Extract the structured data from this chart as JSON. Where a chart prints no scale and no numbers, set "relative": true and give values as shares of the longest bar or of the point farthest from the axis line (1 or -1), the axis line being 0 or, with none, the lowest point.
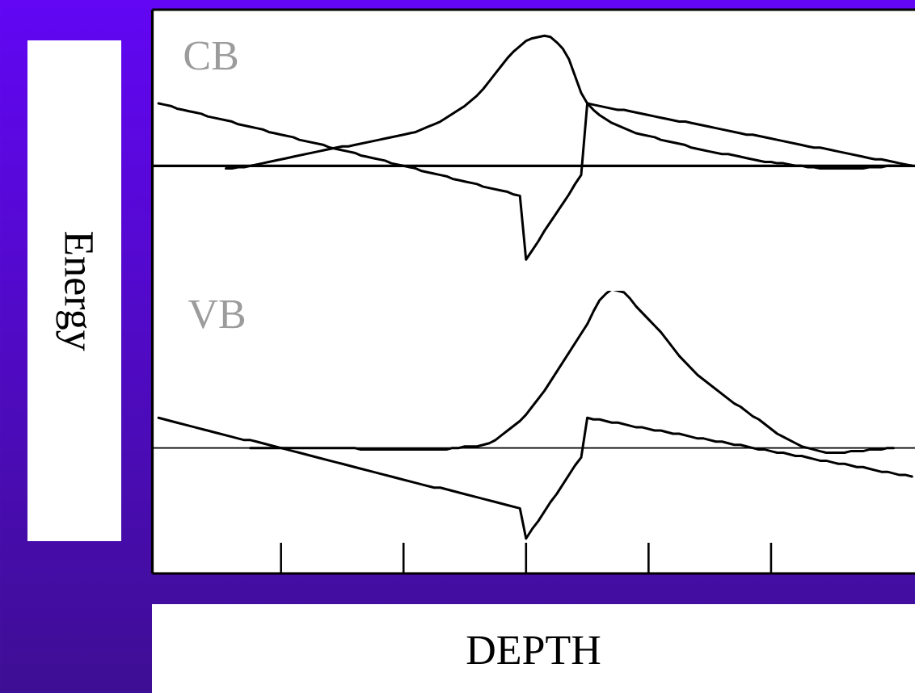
{
  "chart_data": [
    {
      "type": "line",
      "title": "CB",
      "ylabel": "Energy",
      "relative": true,
      "categories": [
        null,
        null,
        null,
        null,
        null,
        null,
        null,
        null,
        null,
        null,
        null,
        null,
        null,
        null,
        null,
        null,
        null,
        null,
        null,
        null,
        null,
        null,
        null,
        null,
        null,
        null,
        null,
        null,
        null,
        null,
        null,
        null,
        null,
        null,
        null,
        null,
        null,
        null,
        null,
        null,
        null,
        null,
        null,
        null,
        null,
        null,
        null,
        null,
        null,
        null,
        null,
        null,
        null,
        null,
        null,
        null,
        null,
        null,
        null,
        null,
        null,
        null,
        null,
        null,
        null,
        null,
        null,
        null,
        null,
        null,
        null,
        null,
        null,
        null,
        null,
        null,
        null,
        null,
        null,
        null,
        null,
        null,
        null,
        null,
        null,
        null,
        null,
        null,
        null,
        null,
        null,
        null,
        null,
        null,
        null,
        null,
        null,
        null,
        null,
        null,
        null,
        null,
        null,
        null,
        null,
        null,
        null,
        null,
        null,
        null,
        null,
        null,
        null,
        null,
        null,
        null,
        null,
        null,
        null,
        null,
        null,
        null,
        null,
        null
      ],
      "series": [
        {
          "color": "#000000",
          "values": [
            0.48,
            0.47,
            0.46,
            0.44,
            0.43,
            0.42,
            0.41,
            0.4,
            0.38,
            0.37,
            0.36,
            0.35,
            0.34,
            0.32,
            0.31,
            0.3,
            0.29,
            0.28,
            0.26,
            0.25,
            0.24,
            0.23,
            0.22,
            0.2,
            0.19,
            0.18,
            0.17,
            0.16,
            0.14,
            0.13,
            0.12,
            0.11,
            0.1,
            0.08,
            0.07,
            0.06,
            0.05,
            0.04,
            0.02,
            0.01,
            0,
            -0.01,
            -0.02,
            -0.04,
            -0.05,
            -0.06,
            -0.07,
            -0.08,
            -0.1,
            -0.11,
            -0.12,
            -0.13,
            -0.14,
            -0.16,
            -0.17,
            -0.18,
            -0.19,
            -0.2,
            -0.22,
            -0.23,
            -0.72,
            -0.65,
            -0.58,
            -0.5,
            -0.43,
            -0.36,
            -0.29,
            -0.22,
            -0.14,
            -0.07,
            0.48,
            0.47,
            0.46,
            0.45,
            0.44,
            0.43,
            0.43,
            0.42,
            0.41,
            0.4,
            0.39,
            0.38,
            0.37,
            0.36,
            0.35,
            0.34,
            0.34,
            0.33,
            0.32,
            0.31,
            0.3,
            0.29,
            0.28,
            0.27,
            0.26,
            0.25,
            0.24,
            0.24,
            0.23,
            0.22,
            0.21,
            0.2,
            0.19,
            0.18,
            0.17,
            0.16,
            0.15,
            0.14,
            0.14,
            0.13,
            0.12,
            0.11,
            0.1,
            0.09,
            0.08,
            0.07,
            0.06,
            0.05,
            0.05,
            0.04,
            0.03,
            0.02,
            0.01,
            0
          ]
        },
        {
          "color": "#000000",
          "values": [
            null,
            null,
            null,
            null,
            null,
            null,
            null,
            null,
            null,
            null,
            null,
            -0.02,
            -0.02,
            -0.01,
            -0.01,
            0,
            0.01,
            0.02,
            0.03,
            0.04,
            0.05,
            0.06,
            0.07,
            0.08,
            0.09,
            0.1,
            0.11,
            0.12,
            0.13,
            0.14,
            0.15,
            0.15,
            0.16,
            0.17,
            0.18,
            0.19,
            0.2,
            0.21,
            0.22,
            0.23,
            0.24,
            0.25,
            0.26,
            0.28,
            0.3,
            0.32,
            0.34,
            0.37,
            0.4,
            0.43,
            0.46,
            0.5,
            0.54,
            0.59,
            0.65,
            0.71,
            0.77,
            0.83,
            0.88,
            0.92,
            0.96,
            0.98,
            0.99,
            1,
            0.99,
            0.95,
            0.9,
            0.82,
            0.69,
            0.56,
            0.48,
            0.43,
            0.39,
            0.36,
            0.33,
            0.31,
            0.29,
            0.27,
            0.25,
            0.24,
            0.23,
            0.22,
            0.2,
            0.19,
            0.18,
            0.17,
            0.16,
            0.14,
            0.13,
            0.12,
            0.11,
            0.1,
            0.09,
            0.09,
            0.08,
            0.07,
            0.06,
            0.05,
            0.04,
            0.03,
            0.03,
            0.02,
            0.02,
            0.01,
            0,
            0,
            -0.01,
            -0.01,
            -0.02,
            -0.02,
            -0.02,
            -0.02,
            -0.02,
            -0.02,
            -0.02,
            -0.02,
            -0.01,
            -0.01,
            -0.01,
            0,
            0,
            0,
            0,
            0
          ]
        }
      ]
    },
    {
      "type": "line",
      "title": "VB",
      "xlabel": "DEPTH",
      "relative": true,
      "categories": [
        null,
        null,
        null,
        null,
        null,
        null,
        null,
        null,
        null,
        null,
        null,
        null,
        null,
        null,
        null,
        null,
        null,
        null,
        null,
        null,
        null,
        null,
        null,
        null,
        null,
        null,
        null,
        null,
        null,
        null,
        null,
        null,
        null,
        null,
        null,
        null,
        null,
        null,
        null,
        null,
        null,
        null,
        null,
        null,
        null,
        null,
        null,
        null,
        null,
        null,
        null,
        null,
        null,
        null,
        null,
        null,
        null,
        null,
        null,
        null,
        null,
        null,
        null,
        null,
        null,
        null,
        null,
        null,
        null,
        null,
        null,
        null,
        null,
        null,
        null,
        null,
        null,
        null,
        null,
        null,
        null,
        null,
        null,
        null,
        null,
        null,
        null,
        null,
        null,
        null,
        null,
        null,
        null,
        null,
        null,
        null,
        null,
        null,
        null,
        null,
        null,
        null,
        null,
        null,
        null,
        null,
        null,
        null,
        null,
        null,
        null,
        null,
        null,
        null,
        null,
        null,
        null,
        null,
        null,
        null,
        null,
        null,
        null,
        null
      ],
      "series": [
        {
          "color": "#000000",
          "values": [
            0.19,
            0.18,
            0.17,
            0.16,
            0.15,
            0.14,
            0.13,
            0.12,
            0.11,
            0.1,
            0.09,
            0.08,
            0.07,
            0.06,
            0.05,
            0.05,
            0.04,
            0.03,
            0.02,
            0.01,
            0,
            -0.01,
            -0.02,
            -0.03,
            -0.04,
            -0.05,
            -0.06,
            -0.07,
            -0.08,
            -0.09,
            -0.1,
            -0.11,
            -0.12,
            -0.13,
            -0.14,
            -0.15,
            -0.16,
            -0.17,
            -0.18,
            -0.19,
            -0.2,
            -0.21,
            -0.22,
            -0.23,
            -0.24,
            -0.25,
            -0.25,
            -0.26,
            -0.27,
            -0.28,
            -0.29,
            -0.3,
            -0.31,
            -0.32,
            -0.33,
            -0.34,
            -0.35,
            -0.36,
            -0.37,
            -0.38,
            -0.57,
            -0.51,
            -0.46,
            -0.4,
            -0.34,
            -0.29,
            -0.23,
            -0.17,
            -0.11,
            -0.06,
            0.19,
            0.18,
            0.18,
            0.17,
            0.16,
            0.16,
            0.15,
            0.14,
            0.13,
            0.13,
            0.12,
            0.11,
            0.11,
            0.1,
            0.09,
            0.09,
            0.08,
            0.07,
            0.06,
            0.06,
            0.05,
            0.04,
            0.04,
            0.03,
            0.02,
            0.02,
            0.01,
            0,
            -0.01,
            -0.01,
            -0.02,
            -0.03,
            -0.03,
            -0.04,
            -0.05,
            -0.05,
            -0.06,
            -0.07,
            -0.08,
            -0.08,
            -0.09,
            -0.1,
            -0.1,
            -0.11,
            -0.12,
            -0.12,
            -0.13,
            -0.14,
            -0.15,
            -0.15,
            -0.16,
            -0.17,
            -0.17,
            -0.18
          ]
        },
        {
          "color": "#000000",
          "values": [
            null,
            null,
            null,
            null,
            null,
            null,
            null,
            null,
            null,
            null,
            null,
            null,
            null,
            null,
            null,
            0,
            0,
            0,
            0,
            0,
            0,
            0,
            0,
            0,
            0,
            0,
            0,
            0,
            0,
            0,
            0,
            0,
            0,
            -0.01,
            -0.01,
            -0.01,
            -0.01,
            -0.01,
            -0.01,
            -0.01,
            -0.01,
            -0.01,
            -0.01,
            -0.01,
            -0.01,
            -0.01,
            -0.01,
            -0.01,
            0,
            0,
            0.01,
            0.01,
            0.01,
            0.02,
            0.03,
            0.05,
            0.08,
            0.11,
            0.14,
            0.17,
            0.21,
            0.26,
            0.31,
            0.36,
            0.42,
            0.48,
            0.54,
            0.6,
            0.66,
            0.72,
            0.78,
            0.86,
            0.93,
            0.97,
            1,
            0.99,
            0.98,
            0.94,
            0.89,
            0.85,
            0.81,
            0.77,
            0.73,
            0.68,
            0.63,
            0.58,
            0.54,
            0.5,
            0.46,
            0.43,
            0.4,
            0.37,
            0.34,
            0.31,
            0.28,
            0.26,
            0.23,
            0.2,
            0.18,
            0.15,
            0.12,
            0.09,
            0.07,
            0.05,
            0.03,
            0.01,
            0,
            -0.01,
            -0.02,
            -0.03,
            -0.03,
            -0.03,
            -0.03,
            -0.02,
            -0.02,
            -0.02,
            -0.01,
            -0.01,
            -0.01,
            0,
            0,
            null,
            null,
            null
          ]
        }
      ]
    }
  ]
}
